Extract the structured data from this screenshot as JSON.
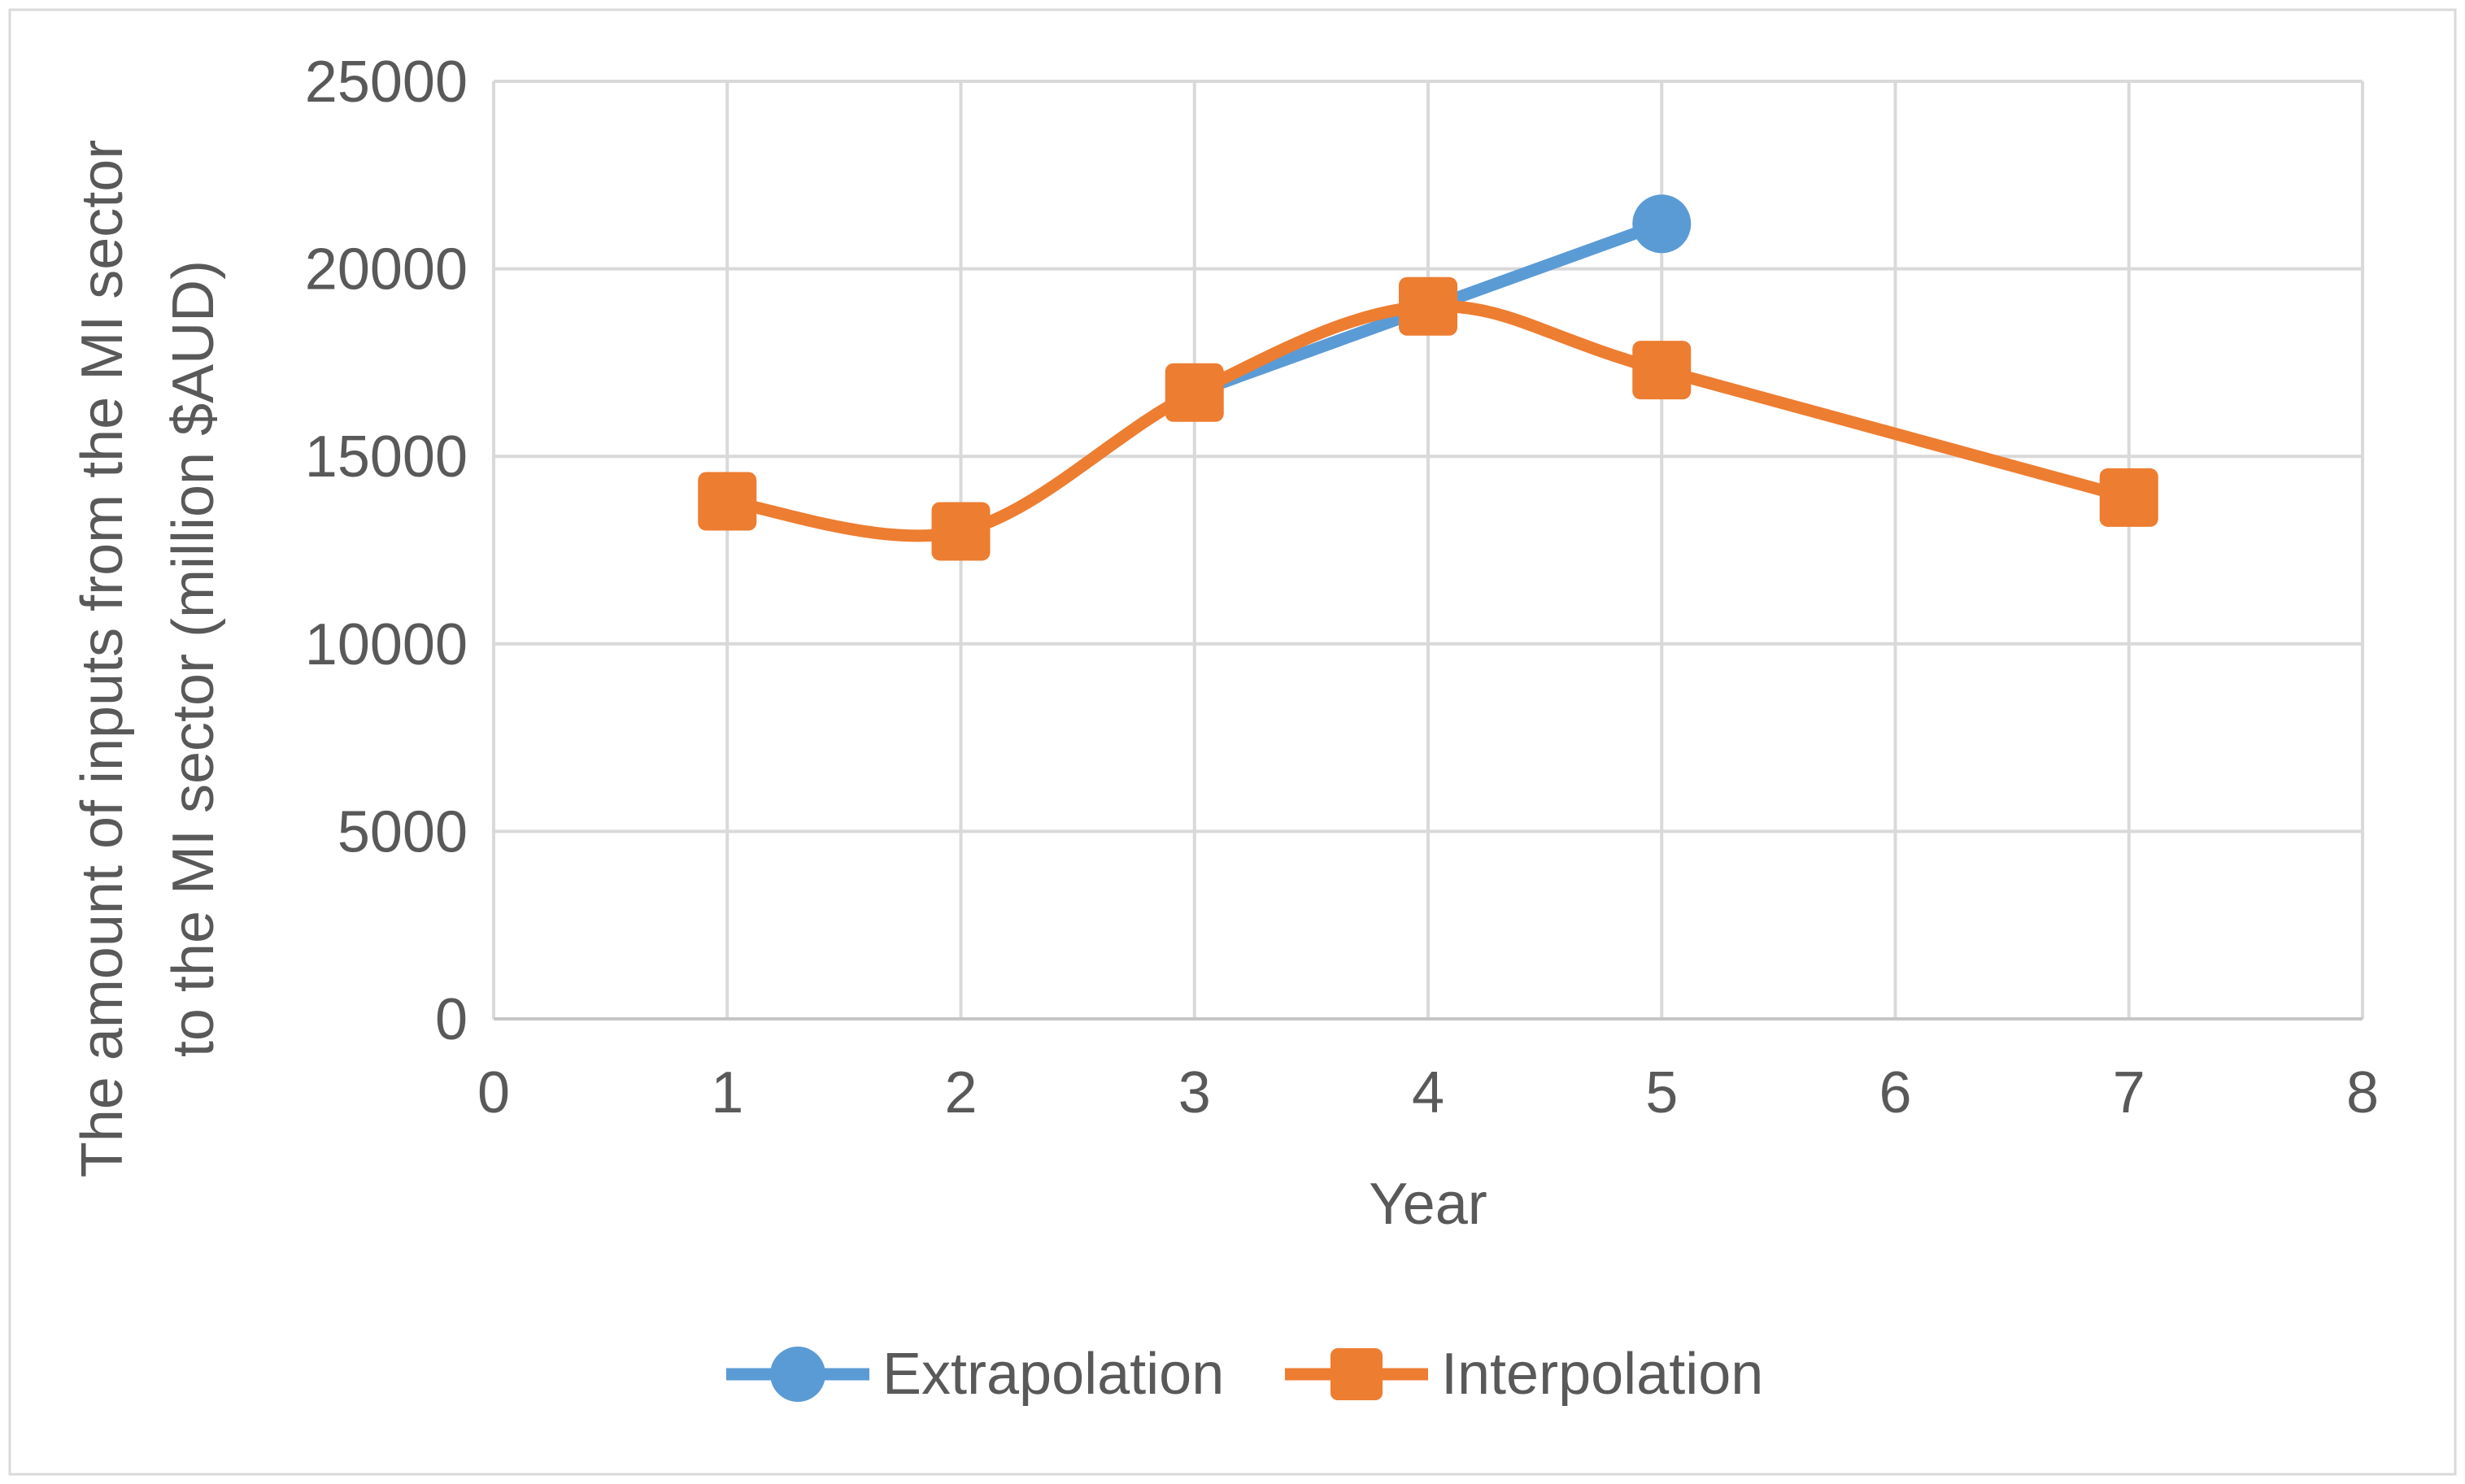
{
  "figure": {
    "background": "#FFFFFF",
    "frame_border_color": "#D9D9D9",
    "gridline_color": "#D9D9D9",
    "axis_line_color": "#C6C6C6",
    "text_color": "#595959"
  },
  "chart_data": {
    "type": "line",
    "title": "",
    "xlabel": "Year",
    "ylabel_line1": "The amount of inputs from the MI sector",
    "ylabel_line2": "to the MI sector (million $AUD)",
    "xlim": [
      0,
      8
    ],
    "ylim": [
      0,
      25000
    ],
    "x_ticks": [
      0,
      1,
      2,
      3,
      4,
      5,
      6,
      7,
      8
    ],
    "y_ticks": [
      0,
      5000,
      10000,
      15000,
      20000,
      25000
    ],
    "grid": true,
    "legend_position": "bottom",
    "series": [
      {
        "name": "Extrapolation",
        "color": "#5B9BD5",
        "marker": "circle",
        "marker_at": "last",
        "smooth": false,
        "x": [
          3,
          4,
          5
        ],
        "y": [
          16700,
          18950,
          21200
        ]
      },
      {
        "name": "Interpolation",
        "color": "#ED7D31",
        "marker": "square",
        "marker_at": "all",
        "smooth": true,
        "x": [
          1,
          2,
          3,
          4,
          5,
          7
        ],
        "y": [
          13800,
          13000,
          16700,
          19000,
          17300,
          13900
        ]
      }
    ]
  }
}
